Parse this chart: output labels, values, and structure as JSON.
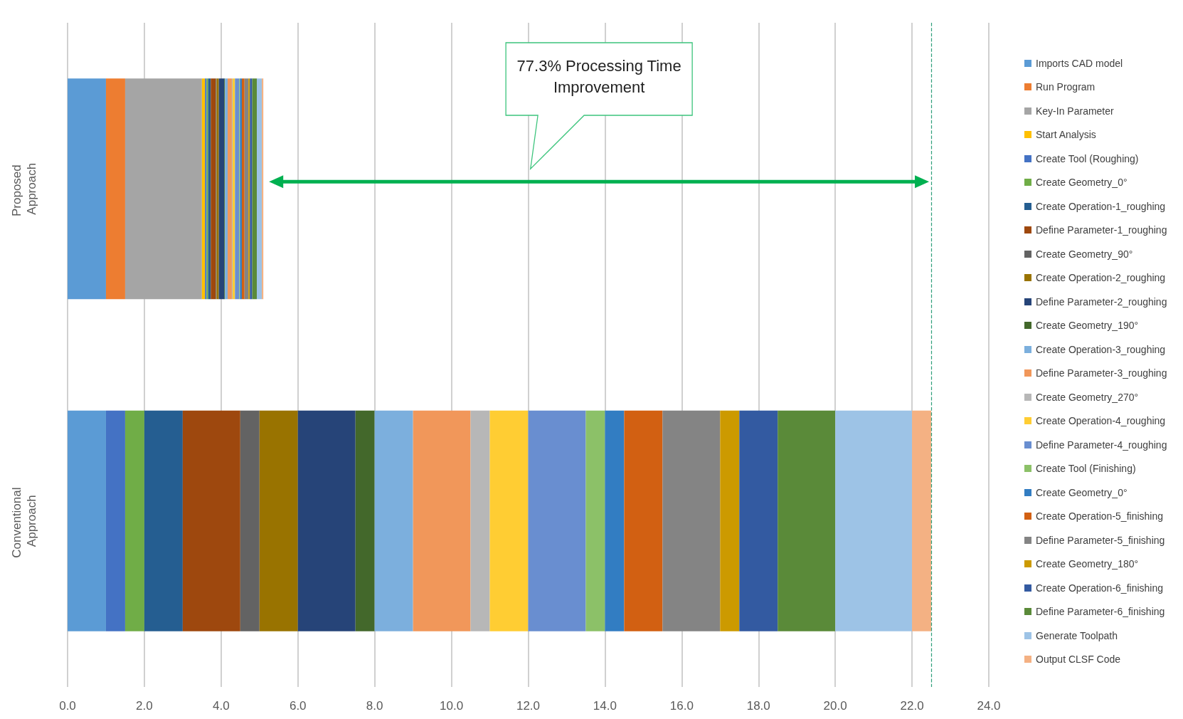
{
  "chart_data": {
    "type": "bar",
    "orientation": "horizontal",
    "stacked": true,
    "categories": [
      "Proposed Approach",
      "Conventional Approach"
    ],
    "xlim": [
      0,
      24
    ],
    "xticks": [
      {
        "value": 0,
        "label": "0.0"
      },
      {
        "value": 2,
        "label": "2.0"
      },
      {
        "value": 4,
        "label": "4.0"
      },
      {
        "value": 6,
        "label": "6.0"
      },
      {
        "value": 8,
        "label": "8.0"
      },
      {
        "value": 10,
        "label": "10.0"
      },
      {
        "value": 12,
        "label": "12.0"
      },
      {
        "value": 14,
        "label": "14.0"
      },
      {
        "value": 16,
        "label": "16.0"
      },
      {
        "value": 18,
        "label": "18.0"
      },
      {
        "value": 20,
        "label": "20.0"
      },
      {
        "value": 22,
        "label": "22.0"
      },
      {
        "value": 24,
        "label": "24.0"
      }
    ],
    "grid": "x",
    "legend": "right",
    "annotations": [
      "77.3% Processing Time Improvement"
    ],
    "ref_lines": [
      {
        "axis": "x",
        "value": 22.5,
        "label": null,
        "color": "#2e9e7a",
        "line_style": "dashed"
      }
    ],
    "series": [
      {
        "name": "Imports CAD model",
        "color": "#5b9bd5",
        "values": [
          1.0,
          1.0
        ]
      },
      {
        "name": "Run Program",
        "color": "#ed7d31",
        "values": [
          0.5,
          0
        ]
      },
      {
        "name": "Key-In Parameter",
        "color": "#a5a5a5",
        "values": [
          2.0,
          0
        ]
      },
      {
        "name": "Start Analysis",
        "color": "#ffc000",
        "values": [
          0.08,
          0
        ]
      },
      {
        "name": "Create Tool (Roughing)",
        "color": "#4472c4",
        "values": [
          0.04,
          0.5
        ]
      },
      {
        "name": "Create Geometry_0°",
        "color": "#70ad47",
        "values": [
          0.04,
          0.5
        ]
      },
      {
        "name": "Create Operation-1_roughing",
        "color": "#255e91",
        "values": [
          0.07,
          1.0
        ]
      },
      {
        "name": "Define Parameter-1_roughing",
        "color": "#9e480e",
        "values": [
          0.13,
          1.5
        ]
      },
      {
        "name": "Create Geometry_90°",
        "color": "#636363",
        "values": [
          0.02,
          0.5
        ]
      },
      {
        "name": "Create Operation-2_roughing",
        "color": "#997300",
        "values": [
          0.06,
          1.0
        ]
      },
      {
        "name": "Define Parameter-2_roughing",
        "color": "#264478",
        "values": [
          0.14,
          1.5
        ]
      },
      {
        "name": "Create Geometry_190°",
        "color": "#43682b",
        "values": [
          0.02,
          0.5
        ]
      },
      {
        "name": "Create Operation-3_roughing",
        "color": "#7cafdd",
        "values": [
          0.07,
          1.0
        ]
      },
      {
        "name": "Define Parameter-3_roughing",
        "color": "#f1975a",
        "values": [
          0.11,
          1.5
        ]
      },
      {
        "name": "Create Geometry_270°",
        "color": "#b7b7b7",
        "values": [
          0.02,
          0.5
        ]
      },
      {
        "name": "Create Operation-4_roughing",
        "color": "#ffcd33",
        "values": [
          0.06,
          1.0
        ]
      },
      {
        "name": "Define Parameter-4_roughing",
        "color": "#698ed0",
        "values": [
          0.11,
          1.5
        ]
      },
      {
        "name": "Create Tool (Finishing)",
        "color": "#8cc168",
        "values": [
          0.02,
          0.5
        ]
      },
      {
        "name": "Create Geometry_0°",
        "color": "#327dc2",
        "values": [
          0.05,
          0.5
        ]
      },
      {
        "name": "Create Operation-5_finishing",
        "color": "#d26012",
        "values": [
          0.07,
          1.0
        ]
      },
      {
        "name": "Define Parameter-5_finishing",
        "color": "#848484",
        "values": [
          0.1,
          1.5
        ]
      },
      {
        "name": "Create Geometry_180°",
        "color": "#cc9a00",
        "values": [
          0.04,
          0.5
        ]
      },
      {
        "name": "Create Operation-6_finishing",
        "color": "#335aa1",
        "values": [
          0.06,
          1.0
        ]
      },
      {
        "name": "Define Parameter-6_finishing",
        "color": "#5a8a39",
        "values": [
          0.12,
          1.5
        ]
      },
      {
        "name": "Generate Toolpath",
        "color": "#9dc3e6",
        "values": [
          0.13,
          2.0
        ]
      },
      {
        "name": "Output CLSF Code",
        "color": "#f4b183",
        "values": [
          0.04,
          0.5
        ]
      }
    ]
  }
}
